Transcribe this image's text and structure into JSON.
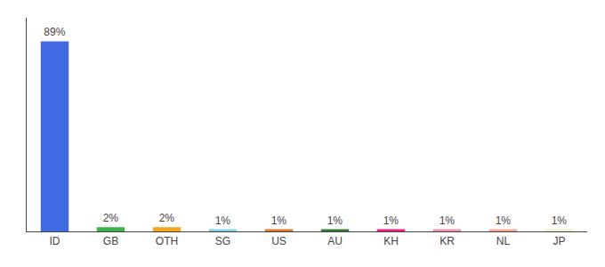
{
  "chart_data": {
    "type": "bar",
    "categories": [
      "ID",
      "GB",
      "OTH",
      "SG",
      "US",
      "AU",
      "KH",
      "KR",
      "NL",
      "JP"
    ],
    "values": [
      89,
      2,
      2,
      1,
      1,
      1,
      1,
      1,
      1,
      1
    ],
    "value_labels": [
      "89%",
      "2%",
      "2%",
      "1%",
      "1%",
      "1%",
      "1%",
      "1%",
      "1%",
      "1%"
    ],
    "colors": [
      "#4169e1",
      "#3cb34a",
      "#f5a623",
      "#87ceeb",
      "#d97b2a",
      "#2e7d32",
      "#e91e8c",
      "#f48fb1",
      "#f4a896",
      "#f0f0d0"
    ],
    "ylim": [
      0,
      100
    ],
    "grid": false,
    "data_labels": true,
    "tick_labels": "x"
  }
}
